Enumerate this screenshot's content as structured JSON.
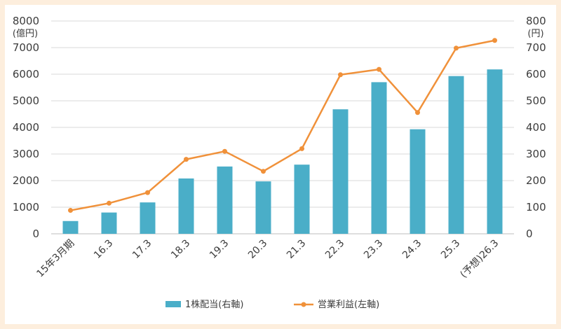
{
  "chart_data": {
    "type": "bar",
    "categories": [
      "15年3月期",
      "16.3",
      "17.3",
      "18.3",
      "19.3",
      "20.3",
      "21.3",
      "22.3",
      "23.3",
      "24.3",
      "25.3",
      "(予想)26.3"
    ],
    "series": [
      {
        "name": "1株配当(右軸)",
        "type": "bar",
        "axis": "right",
        "color": "#4aaec8",
        "values": [
          48,
          80,
          118,
          208,
          253,
          197,
          260,
          468,
          570,
          393,
          593,
          618
        ]
      },
      {
        "name": "営業利益(左軸)",
        "type": "line",
        "axis": "left",
        "color": "#f0913a",
        "values": [
          880,
          1150,
          1550,
          2800,
          3100,
          2350,
          3200,
          5980,
          6180,
          4560,
          6980,
          7270
        ]
      }
    ],
    "y_left": {
      "unit": "(億円)",
      "range": [
        0,
        8000
      ],
      "ticks": [
        "0",
        "1000",
        "2000",
        "3000",
        "4000",
        "5000",
        "6000",
        "7000",
        "8000"
      ]
    },
    "y_right": {
      "unit": "(円)",
      "range": [
        0,
        800
      ],
      "ticks": [
        "0",
        "100",
        "200",
        "300",
        "400",
        "500",
        "600",
        "700",
        "800"
      ]
    },
    "grid": true,
    "legend": "bottom"
  }
}
